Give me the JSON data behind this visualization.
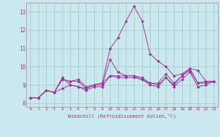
{
  "xlabel": "Windchill (Refroidissement éolien,°C)",
  "background_color": "#cce8ef",
  "grid_color": "#aacccc",
  "line_color": "#993399",
  "x_labels": [
    "0",
    "1",
    "2",
    "3",
    "4",
    "5",
    "6",
    "7",
    "8",
    "9",
    "10",
    "11",
    "12",
    "13",
    "14",
    "15",
    "16",
    "17",
    "18",
    "19",
    "20",
    "21",
    "22",
    "23"
  ],
  "ylim": [
    7.8,
    13.5
  ],
  "xlim": [
    -0.5,
    23.5
  ],
  "yticks": [
    8,
    9,
    10,
    11,
    12,
    13
  ],
  "series": [
    [
      8.3,
      8.3,
      8.7,
      8.6,
      9.3,
      9.2,
      9.2,
      8.8,
      9.0,
      9.1,
      11.0,
      11.6,
      12.5,
      13.3,
      12.5,
      10.7,
      10.3,
      10.0,
      9.5,
      9.6,
      9.9,
      9.8,
      9.2,
      9.2
    ],
    [
      8.3,
      8.3,
      8.7,
      8.6,
      9.4,
      9.0,
      8.9,
      8.8,
      9.0,
      9.0,
      10.4,
      9.7,
      9.5,
      9.5,
      9.3,
      9.1,
      9.0,
      9.4,
      9.0,
      9.5,
      9.8,
      9.1,
      9.2,
      9.2
    ],
    [
      8.3,
      8.3,
      8.7,
      8.6,
      8.8,
      9.0,
      8.9,
      8.7,
      8.9,
      8.9,
      9.5,
      9.4,
      9.4,
      9.4,
      9.3,
      9.0,
      8.9,
      9.4,
      8.9,
      9.3,
      9.7,
      8.9,
      9.0,
      9.2
    ],
    [
      8.3,
      8.3,
      8.7,
      8.6,
      9.3,
      9.2,
      9.3,
      8.9,
      9.0,
      9.1,
      9.5,
      9.5,
      9.5,
      9.5,
      9.4,
      9.1,
      9.1,
      9.6,
      9.1,
      9.5,
      9.9,
      9.1,
      9.1,
      9.2
    ]
  ],
  "figsize": [
    3.2,
    2.0
  ],
  "dpi": 100
}
